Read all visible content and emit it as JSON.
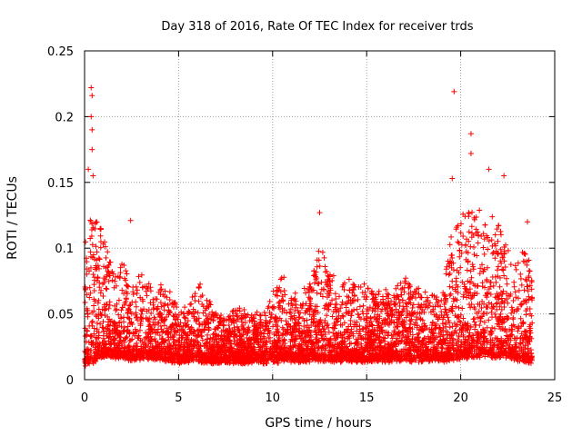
{
  "chart_data": {
    "type": "scatter",
    "title": "Day 318 of 2016, Rate Of TEC Index for receiver trds",
    "xlabel": "GPS time / hours",
    "ylabel": "ROTI / TECUs",
    "xlim": [
      0,
      25
    ],
    "ylim": [
      0,
      0.25
    ],
    "xticks": [
      0,
      5,
      10,
      15,
      20,
      25
    ],
    "xtick_labels": [
      "0",
      "5",
      "10",
      "15",
      "20",
      "25"
    ],
    "yticks": [
      0,
      0.05,
      0.1,
      0.15,
      0.2,
      0.25
    ],
    "ytick_labels": [
      "0",
      "0.05",
      "0.1",
      "0.15",
      "0.2",
      "0.25"
    ],
    "grid": true,
    "marker": "+",
    "color": "#ff0000",
    "x_range_of_data": [
      0,
      23.8
    ],
    "notable_points": [
      {
        "x": 0.35,
        "y": 0.222
      },
      {
        "x": 0.4,
        "y": 0.216
      },
      {
        "x": 0.35,
        "y": 0.2
      },
      {
        "x": 0.4,
        "y": 0.19
      },
      {
        "x": 0.4,
        "y": 0.175
      },
      {
        "x": 0.2,
        "y": 0.16
      },
      {
        "x": 0.45,
        "y": 0.155
      },
      {
        "x": 2.45,
        "y": 0.121
      },
      {
        "x": 12.5,
        "y": 0.127
      },
      {
        "x": 19.65,
        "y": 0.219
      },
      {
        "x": 20.55,
        "y": 0.187
      },
      {
        "x": 20.55,
        "y": 0.172
      },
      {
        "x": 19.55,
        "y": 0.153
      },
      {
        "x": 21.5,
        "y": 0.16
      },
      {
        "x": 22.3,
        "y": 0.155
      },
      {
        "x": 23.55,
        "y": 0.12
      }
    ],
    "envelope": {
      "x": [
        0,
        0.5,
        1,
        1.5,
        2,
        2.5,
        3,
        3.5,
        4,
        4.5,
        5,
        5.5,
        6,
        6.5,
        7,
        7.5,
        8,
        8.5,
        9,
        9.5,
        10,
        10.5,
        11,
        11.5,
        12,
        12.5,
        13,
        13.5,
        14,
        14.5,
        15,
        15.5,
        16,
        16.5,
        17,
        17.5,
        18,
        18.5,
        19,
        19.5,
        20,
        20.5,
        21,
        21.5,
        22,
        22.5,
        23,
        23.5,
        23.8
      ],
      "y": [
        0.1,
        0.13,
        0.11,
        0.08,
        0.085,
        0.08,
        0.075,
        0.07,
        0.07,
        0.065,
        0.05,
        0.055,
        0.07,
        0.06,
        0.05,
        0.045,
        0.05,
        0.05,
        0.045,
        0.05,
        0.06,
        0.08,
        0.065,
        0.06,
        0.07,
        0.1,
        0.08,
        0.07,
        0.075,
        0.07,
        0.07,
        0.065,
        0.065,
        0.065,
        0.075,
        0.07,
        0.06,
        0.065,
        0.06,
        0.12,
        0.12,
        0.13,
        0.13,
        0.12,
        0.12,
        0.1,
        0.09,
        0.1,
        0.09
      ],
      "base": [
        0.01,
        0.012,
        0.015,
        0.016,
        0.015,
        0.014,
        0.014,
        0.015,
        0.014,
        0.013,
        0.012,
        0.013,
        0.013,
        0.012,
        0.012,
        0.012,
        0.012,
        0.012,
        0.012,
        0.012,
        0.012,
        0.013,
        0.013,
        0.013,
        0.013,
        0.013,
        0.013,
        0.013,
        0.013,
        0.013,
        0.013,
        0.013,
        0.013,
        0.013,
        0.013,
        0.013,
        0.013,
        0.013,
        0.013,
        0.014,
        0.015,
        0.016,
        0.016,
        0.016,
        0.016,
        0.015,
        0.014,
        0.012,
        0.012
      ]
    }
  }
}
